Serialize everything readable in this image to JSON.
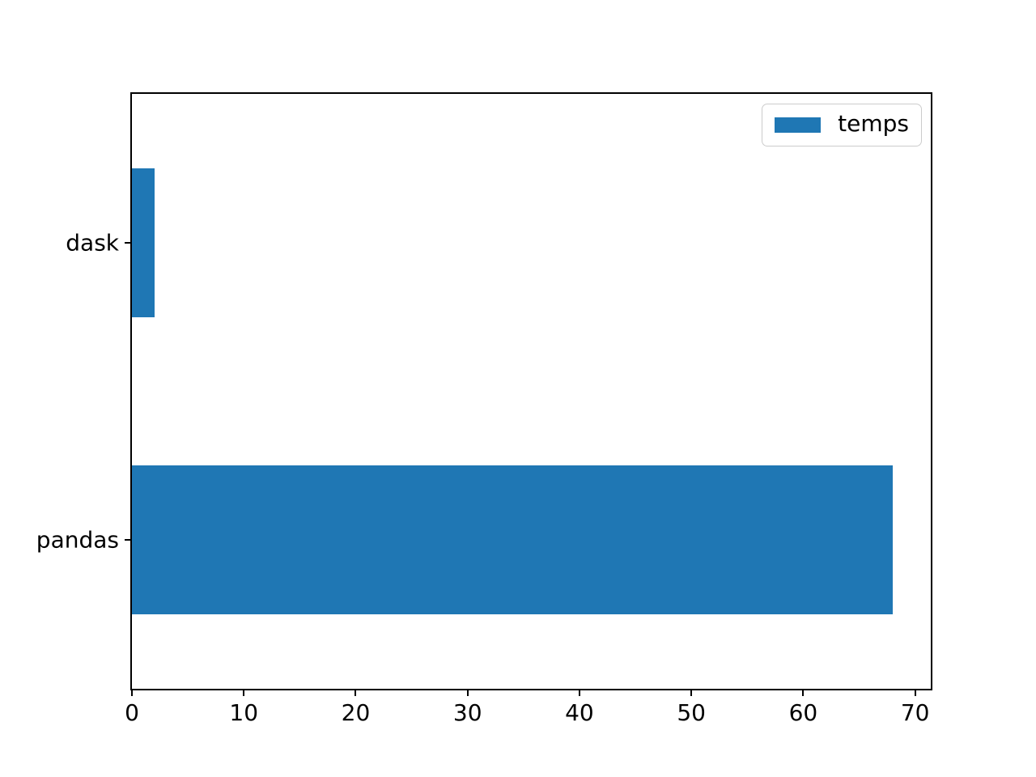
{
  "chart_data": {
    "type": "bar",
    "orientation": "horizontal",
    "title": "",
    "xlabel": "",
    "ylabel": "",
    "categories": [
      "dask",
      "pandas"
    ],
    "series": [
      {
        "name": "temps",
        "color": "#1f77b4",
        "values": [
          2,
          68
        ]
      }
    ],
    "x_ticks": [
      0,
      10,
      20,
      30,
      40,
      50,
      60,
      70
    ],
    "xlim": [
      0,
      71.4
    ],
    "bar_width_ratio": 0.5,
    "grid": false,
    "legend": {
      "position": "upper right",
      "entries": [
        "temps"
      ]
    }
  },
  "colors": {
    "bar": "#1f77b4",
    "spine": "#000000",
    "legend_border": "#cccccc",
    "background": "#ffffff"
  }
}
